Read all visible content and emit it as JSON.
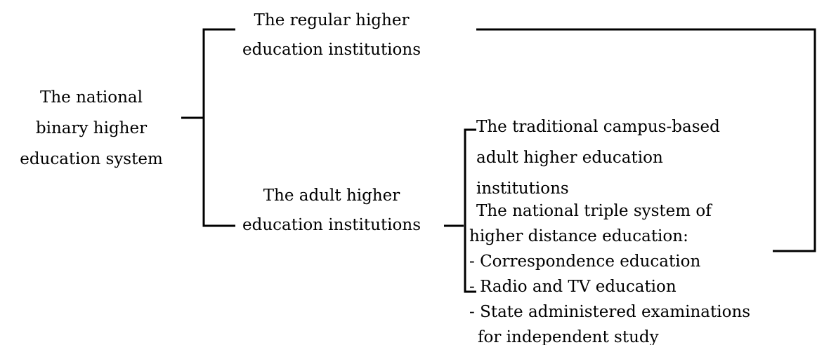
{
  "nodes": [
    {
      "lines": [
        "The national",
        "binary higher",
        "education system"
      ]
    },
    {
      "lines": [
        "The regular higher",
        "education institutions"
      ]
    },
    {
      "lines": [
        "The adult higher",
        "education institutions"
      ]
    },
    {
      "lines": [
        "The traditional campus-based",
        "adult higher education",
        "institutions"
      ]
    },
    {
      "lines": [
        "The national triple system of",
        "higher distance education:",
        "- Correspondence education",
        "- Radio and TV education",
        "- State administered examinations",
        "for independent study"
      ]
    }
  ]
}
